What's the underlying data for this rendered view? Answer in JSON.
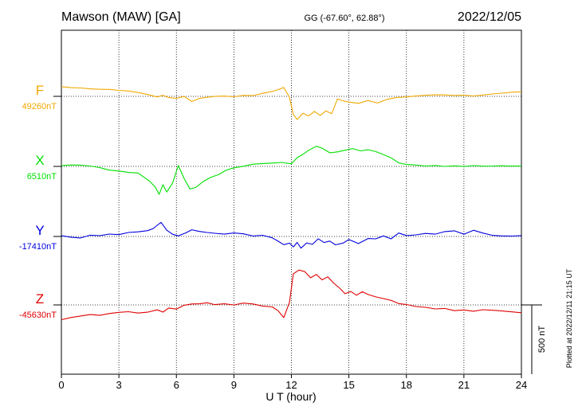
{
  "header": {
    "station": "Mawson (MAW)  [GA]",
    "coords": "GG (-67.60°,  62.88°)",
    "date": "2022/12/05"
  },
  "side_note": "Plotted at 2022/12/11 21:15 UT",
  "scale_label": "500 nT",
  "chart_data": {
    "type": "line",
    "xlabel": "U T (hour)",
    "xlim": [
      0,
      24
    ],
    "xticks": [
      0,
      3,
      6,
      9,
      12,
      15,
      18,
      21,
      24
    ],
    "series": [
      {
        "name": "F",
        "baseline_label": "49260nT",
        "color": "#f0a800",
        "baseline_nT": 49260,
        "x": [
          0,
          0.5,
          1,
          1.5,
          2,
          2.5,
          3,
          3.5,
          4,
          4.5,
          5,
          5.3,
          5.6,
          6,
          6.4,
          6.8,
          7.2,
          7.6,
          8,
          8.5,
          9,
          9.5,
          10,
          10.5,
          11,
          11.3,
          11.6,
          11.9,
          12.1,
          12.3,
          12.6,
          12.9,
          13.2,
          13.5,
          13.8,
          14.1,
          14.4,
          14.7,
          15,
          15.5,
          16,
          16.5,
          17,
          17.5,
          18,
          18.5,
          19,
          19.5,
          20,
          20.5,
          21,
          21.5,
          22,
          22.5,
          23,
          23.5,
          24
        ],
        "y": [
          70,
          64,
          62,
          55,
          50,
          48,
          40,
          35,
          25,
          12,
          -5,
          5,
          -8,
          -15,
          2,
          -35,
          -15,
          -5,
          -4,
          0,
          -3,
          8,
          6,
          22,
          34,
          52,
          64,
          -10,
          -130,
          -165,
          -120,
          -145,
          -110,
          -135,
          -105,
          -125,
          -20,
          -35,
          -40,
          -50,
          -30,
          -48,
          -20,
          -5,
          0,
          6,
          10,
          12,
          10,
          6,
          8,
          4,
          12,
          20,
          25,
          30,
          32
        ]
      },
      {
        "name": "X",
        "baseline_label": "6510nT",
        "color": "#00e000",
        "baseline_nT": 6510,
        "x": [
          0,
          0.5,
          1,
          1.5,
          2,
          2.5,
          3,
          3.5,
          4,
          4.3,
          4.6,
          4.9,
          5.1,
          5.3,
          5.5,
          5.8,
          6.1,
          6.4,
          6.7,
          7,
          7.4,
          7.8,
          8.2,
          8.6,
          9,
          9.5,
          10,
          10.5,
          11,
          11.5,
          12,
          12.3,
          12.6,
          12.9,
          13.3,
          13.6,
          14,
          14.4,
          14.8,
          15.2,
          15.6,
          16,
          16.4,
          16.8,
          17.2,
          17.6,
          18,
          18.5,
          19,
          19.5,
          20,
          20.5,
          21,
          21.5,
          22,
          22.5,
          23,
          23.5,
          24
        ],
        "y": [
          6,
          10,
          8,
          2,
          -8,
          -25,
          -30,
          -40,
          -45,
          -75,
          -110,
          -150,
          -205,
          -130,
          -185,
          -120,
          5,
          -90,
          -160,
          -150,
          -110,
          -80,
          -60,
          -30,
          -10,
          0,
          15,
          20,
          25,
          30,
          20,
          60,
          85,
          120,
          145,
          130,
          95,
          105,
          115,
          130,
          115,
          120,
          110,
          85,
          60,
          25,
          10,
          6,
          0,
          5,
          0,
          5,
          0,
          5,
          0,
          0,
          3,
          2,
          4
        ]
      },
      {
        "name": "Y",
        "baseline_label": "-17410nT",
        "color": "#0000e0",
        "baseline_nT": -17410,
        "x": [
          0,
          0.5,
          1,
          1.5,
          2,
          2.5,
          3,
          3.5,
          4,
          4.5,
          4.8,
          5,
          5.2,
          5.5,
          5.8,
          6.1,
          6.5,
          6.8,
          7.2,
          7.6,
          8,
          8.5,
          9,
          9.5,
          10,
          10.5,
          11,
          11.3,
          11.6,
          11.9,
          12.1,
          12.3,
          12.5,
          12.8,
          13.1,
          13.4,
          13.7,
          14,
          14.3,
          14.7,
          15,
          15.5,
          16,
          16.4,
          16.8,
          17.2,
          17.6,
          18,
          18.5,
          19,
          19.5,
          20,
          20.5,
          21,
          21.5,
          22,
          22.5,
          23,
          23.5,
          24
        ],
        "y": [
          4,
          -5,
          -10,
          10,
          5,
          15,
          10,
          25,
          30,
          40,
          55,
          80,
          100,
          45,
          15,
          5,
          25,
          50,
          35,
          30,
          20,
          15,
          25,
          20,
          5,
          10,
          -10,
          -30,
          -60,
          -50,
          -75,
          -40,
          -85,
          -45,
          -55,
          -20,
          -45,
          -30,
          -60,
          -50,
          -20,
          -50,
          -15,
          -20,
          5,
          -15,
          25,
          10,
          15,
          25,
          18,
          35,
          40,
          15,
          45,
          25,
          10,
          5,
          3,
          5
        ]
      },
      {
        "name": "Z",
        "baseline_label": "-45630nT",
        "color": "#e00000",
        "baseline_nT": -45630,
        "x": [
          0,
          0.5,
          1,
          1.5,
          2,
          2.5,
          3,
          3.5,
          4,
          4.5,
          5,
          5.3,
          5.6,
          6,
          6.4,
          6.8,
          7.2,
          7.6,
          8,
          8.5,
          9,
          9.5,
          10,
          10.5,
          11,
          11.3,
          11.6,
          11.9,
          12.1,
          12.4,
          12.7,
          13,
          13.3,
          13.6,
          13.9,
          14.2,
          14.5,
          14.8,
          15.1,
          15.4,
          15.7,
          16,
          16.4,
          16.8,
          17.2,
          17.6,
          18,
          18.5,
          19,
          19.5,
          20,
          20.5,
          21,
          21.5,
          22,
          22.5,
          23,
          23.5,
          24
        ],
        "y": [
          -105,
          -90,
          -80,
          -70,
          -75,
          -60,
          -50,
          -45,
          -55,
          -50,
          -35,
          -50,
          -25,
          -30,
          -5,
          5,
          10,
          15,
          5,
          10,
          0,
          12,
          5,
          -10,
          -15,
          -45,
          -90,
          20,
          225,
          255,
          240,
          195,
          220,
          180,
          205,
          160,
          120,
          80,
          100,
          70,
          95,
          75,
          60,
          45,
          30,
          10,
          0,
          -15,
          -20,
          -30,
          -25,
          -40,
          -35,
          -45,
          -35,
          -40,
          -45,
          -50,
          -55
        ]
      }
    ]
  }
}
